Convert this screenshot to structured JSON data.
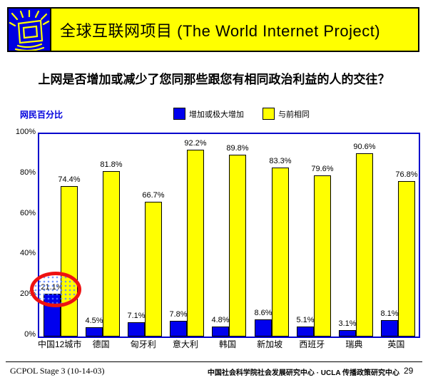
{
  "header": {
    "title": "全球互联网项目 (The World Internet Project)",
    "logo_icon": "shining-monitor-icon",
    "banner_color": "#ffff00",
    "logo_color": "#0000e0"
  },
  "question": "上网是否增加或减少了您同那些跟您有相同政治利益的人的交往？",
  "chart_data": {
    "type": "bar",
    "title": "",
    "ylabel": "网民百分比",
    "xlabel": "",
    "categories": [
      "中国12城市",
      "德国",
      "匈牙利",
      "意大利",
      "韩国",
      "新加坡",
      "西班牙",
      "瑞典",
      "英国"
    ],
    "series": [
      {
        "name": "增加或极大增加",
        "color": "#0000ee",
        "values": [
          21.1,
          4.5,
          7.1,
          7.8,
          4.8,
          8.6,
          5.1,
          3.1,
          8.1
        ]
      },
      {
        "name": "与前相同",
        "color": "#ffff00",
        "values": [
          74.4,
          81.8,
          66.7,
          92.2,
          89.8,
          83.3,
          79.6,
          90.6,
          76.8
        ]
      }
    ],
    "ylim": [
      0,
      100
    ],
    "yticks": [
      0,
      20,
      40,
      60,
      80,
      100
    ],
    "ytick_labels": [
      "0%",
      "20%",
      "40%",
      "60%",
      "80%",
      "100%"
    ],
    "grid": false,
    "legend_position": "top-center",
    "annotation": {
      "shape": "red-ellipse-highlight",
      "highlighted_value": "21.1%",
      "highlighted_category": "中国12城市",
      "highlighted_series": "增加或极大增加",
      "color": "#ee1111"
    }
  },
  "footer": {
    "left": "GCPOL Stage 3 (10-14-03)",
    "center": "中国社会科学院社会发展研究中心 · UCLA 传播政策研究中心",
    "page": "29"
  }
}
